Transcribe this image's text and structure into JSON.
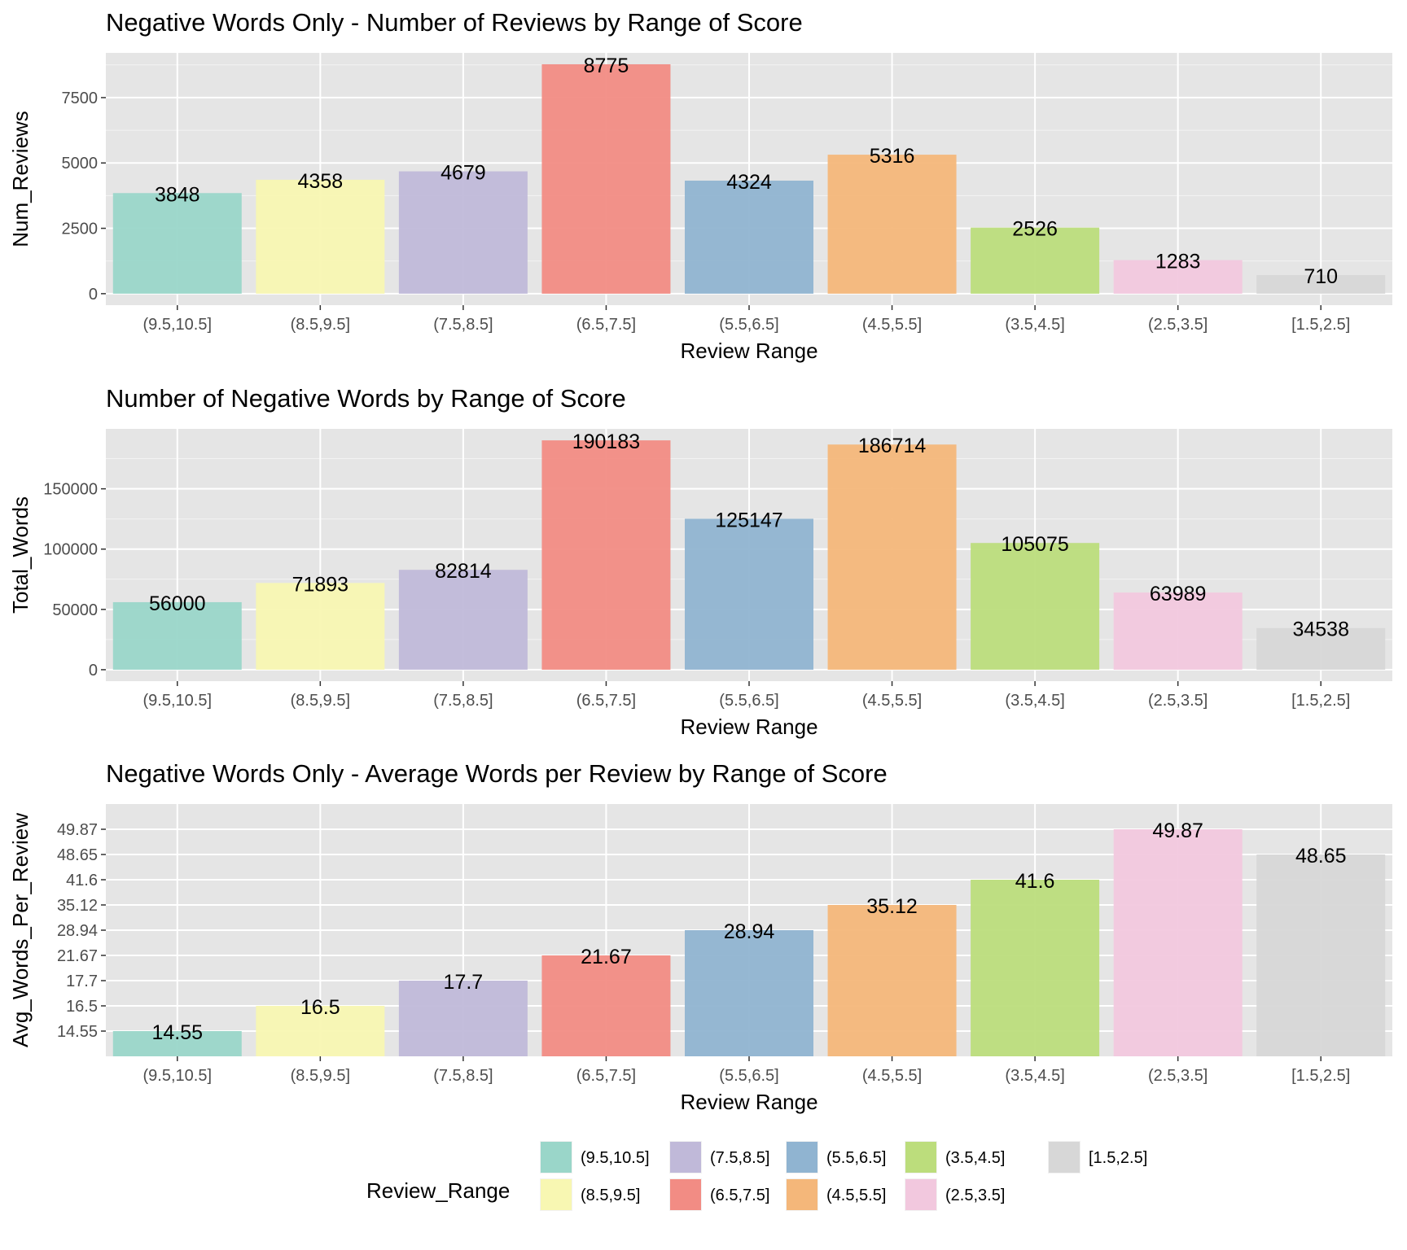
{
  "chart_data": [
    {
      "type": "bar",
      "title": "Negative Words Only - Number of Reviews by Range of Score",
      "xlabel": "Review Range",
      "ylabel": "Num_Reviews",
      "categories": [
        "(9.5,10.5]",
        "(8.5,9.5]",
        "(7.5,8.5]",
        "(6.5,7.5]",
        "(5.5,6.5]",
        "(4.5,5.5]",
        "(3.5,4.5]",
        "(2.5,3.5]",
        "[1.5,2.5]"
      ],
      "values": [
        3848,
        4358,
        4679,
        8775,
        4324,
        5316,
        2526,
        1283,
        710
      ],
      "labels": [
        "3848",
        "4358",
        "4679",
        "8775",
        "4324",
        "5316",
        "2526",
        "1283",
        "710"
      ],
      "yticks": [
        0,
        2500,
        5000,
        7500
      ],
      "ytick_labels": [
        "0",
        "2500",
        "5000",
        "7500"
      ],
      "ylim": [
        -440,
        9210
      ],
      "grid": true
    },
    {
      "type": "bar",
      "title": "Number of Negative Words by Range of Score",
      "xlabel": "Review Range",
      "ylabel": "Total_Words",
      "categories": [
        "(9.5,10.5]",
        "(8.5,9.5]",
        "(7.5,8.5]",
        "(6.5,7.5]",
        "(5.5,6.5]",
        "(4.5,5.5]",
        "(3.5,4.5]",
        "(2.5,3.5]",
        "[1.5,2.5]"
      ],
      "values": [
        56000,
        71893,
        82814,
        190183,
        125147,
        186714,
        105075,
        63989,
        34538
      ],
      "labels": [
        "56000",
        "71893",
        "82814",
        "190183",
        "125147",
        "186714",
        "105075",
        "63989",
        "34538"
      ],
      "yticks": [
        0,
        50000,
        100000,
        150000
      ],
      "ytick_labels": [
        "0",
        "50000",
        "100000",
        "150000"
      ],
      "ylim": [
        -9500,
        199700
      ],
      "grid": true
    },
    {
      "type": "bar",
      "title": "Negative Words Only - Average Words per Review by Range of Score",
      "xlabel": "Review Range",
      "ylabel": "Avg_Words_Per_Review",
      "categories": [
        "(9.5,10.5]",
        "(8.5,9.5]",
        "(7.5,8.5]",
        "(6.5,7.5]",
        "(5.5,6.5]",
        "(4.5,5.5]",
        "(3.5,4.5]",
        "(2.5,3.5]",
        "[1.5,2.5]"
      ],
      "values": [
        14.55,
        16.5,
        17.7,
        21.67,
        28.94,
        35.12,
        41.6,
        49.87,
        48.65
      ],
      "labels": [
        "14.55",
        "16.5",
        "17.7",
        "21.67",
        "28.94",
        "35.12",
        "41.6",
        "49.87",
        "48.65"
      ],
      "yticks": [
        14.55,
        16.5,
        17.7,
        21.67,
        28.94,
        35.12,
        41.6,
        48.65,
        49.87
      ],
      "ytick_labels": [
        "14.55",
        "16.5",
        "17.7",
        "21.67",
        "28.94",
        "35.12",
        "41.6",
        "48.65",
        "49.87"
      ],
      "y_scale": "discrete (each tick one rank step)",
      "grid": true
    }
  ],
  "legend": {
    "title": "Review_Range",
    "position": "bottom",
    "items": [
      {
        "label": "(9.5,10.5]",
        "color": "#9ad6c9"
      },
      {
        "label": "(8.5,9.5]",
        "color": "#f8f7b2"
      },
      {
        "label": "(7.5,8.5]",
        "color": "#c0b9d9"
      },
      {
        "label": "(6.5,7.5]",
        "color": "#f28c84"
      },
      {
        "label": "(5.5,6.5]",
        "color": "#90b4d1"
      },
      {
        "label": "(4.5,5.5]",
        "color": "#f4b77a"
      },
      {
        "label": "(3.5,4.5]",
        "color": "#bcdd7c"
      },
      {
        "label": "(2.5,3.5]",
        "color": "#f2c8de"
      },
      {
        "label": "[1.5,2.5]",
        "color": "#d7d7d7"
      }
    ]
  },
  "colors": {
    "panel_background": "#e5e5e5",
    "grid_line": "#ffffff",
    "tick_color": "#333333"
  }
}
